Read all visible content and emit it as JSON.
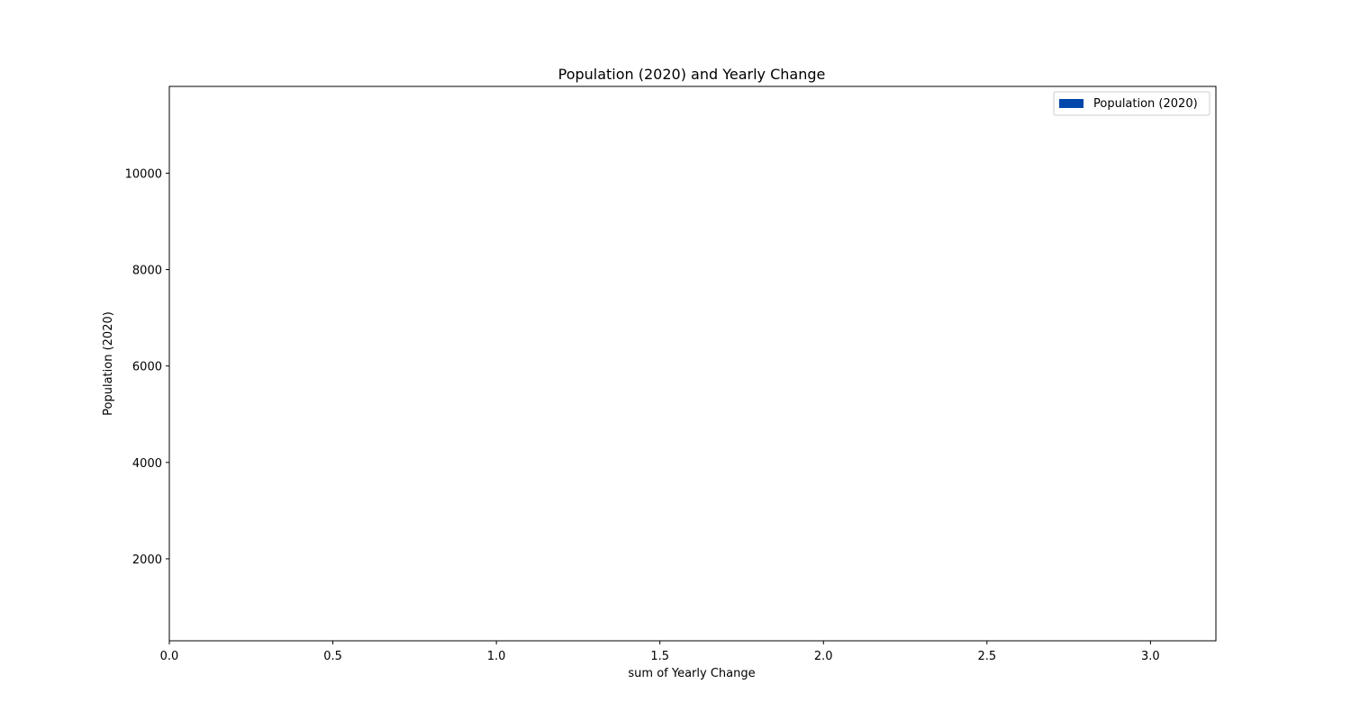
{
  "chart_data": {
    "type": "bar",
    "title": "Population (2020) and Yearly Change",
    "xlabel": "sum of Yearly Change",
    "ylabel": "Population (2020)",
    "xlim": [
      0,
      3.2
    ],
    "ylim": [
      300,
      11800
    ],
    "xticks": [
      0.0,
      0.5,
      1.0,
      1.5,
      2.0,
      2.5,
      3.0
    ],
    "xtick_labels": [
      "0.0",
      "0.5",
      "1.0",
      "1.5",
      "2.0",
      "2.5",
      "3.0"
    ],
    "yticks": [
      2000,
      4000,
      6000,
      8000,
      10000
    ],
    "ytick_labels": [
      "2000",
      "4000",
      "6000",
      "8000",
      "10000"
    ],
    "grid": false,
    "legend": {
      "placement": "top-right",
      "entries": [
        "Population (2020)"
      ]
    },
    "series": [
      {
        "name": "Population (2020)",
        "color": "#0047ab",
        "values": []
      }
    ]
  }
}
